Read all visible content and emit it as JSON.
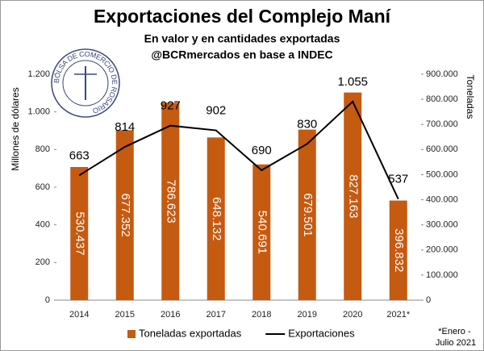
{
  "chart_data": {
    "type": "bar_line",
    "title": "Exportaciones del Complejo Maní",
    "subtitle": [
      "En valor y en cantidades exportadas",
      "@BCRmercados en base a INDEC"
    ],
    "logo_text": "BOLSA DE COMERCIO DE ROSARIO",
    "ylabel": "Millones de dólares",
    "y2label": "Toneladas",
    "footnote": "*Enero - Julio 2021",
    "categories": [
      "2014",
      "2015",
      "2016",
      "2017",
      "2018",
      "2019",
      "2020",
      "2021*"
    ],
    "ylim": [
      0,
      1200
    ],
    "yticks": [
      0,
      200,
      400,
      600,
      800,
      {
        "value": 1000,
        "label": "1.000"
      },
      {
        "value": 1200,
        "label": "1.200"
      }
    ],
    "y2lim": [
      0,
      900000
    ],
    "y2ticks": [
      0,
      {
        "value": 100000,
        "label": "100.000"
      },
      {
        "value": 200000,
        "label": "200.000"
      },
      {
        "value": 300000,
        "label": "300.000"
      },
      {
        "value": 400000,
        "label": "400.000"
      },
      {
        "value": 500000,
        "label": "500.000"
      },
      {
        "value": 600000,
        "label": "600.000"
      },
      {
        "value": 700000,
        "label": "700.000"
      },
      {
        "value": 800000,
        "label": "800.000"
      },
      {
        "value": 900000,
        "label": "900.000"
      }
    ],
    "series": [
      {
        "name": "Toneladas exportadas",
        "type": "bar",
        "axis": "y2",
        "color": "#c55a11",
        "values": [
          530437,
          677352,
          786623,
          648132,
          540691,
          679501,
          827163,
          396832
        ],
        "value_labels": [
          "530.437",
          "677.352",
          "786.623",
          "648.132",
          "540.691",
          "679.501",
          "827.163",
          "396.832"
        ]
      },
      {
        "name": "Exportaciones",
        "type": "line",
        "axis": "y",
        "color": "#000000",
        "values": [
          663,
          814,
          927,
          902,
          690,
          830,
          1055,
          537
        ],
        "value_labels": [
          "663",
          "814",
          "927",
          "902",
          "690",
          "830",
          "1.055",
          "537"
        ]
      }
    ]
  }
}
